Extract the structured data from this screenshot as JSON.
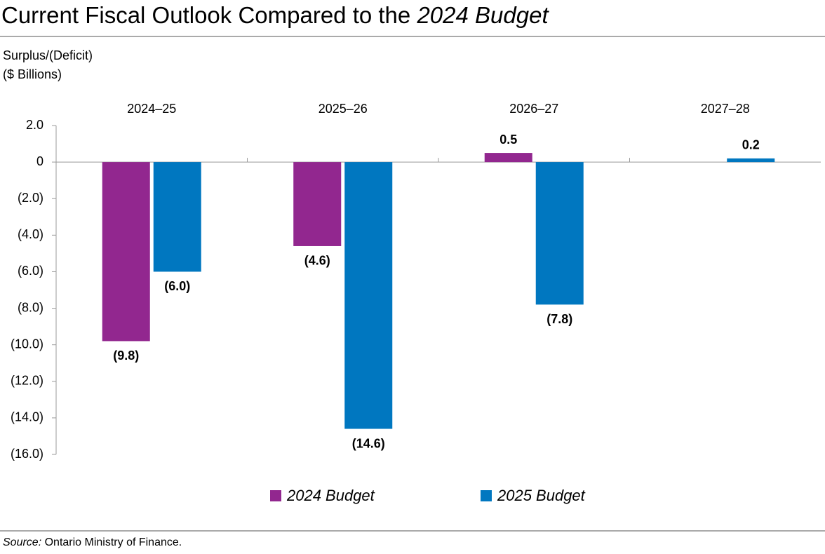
{
  "chart_data": {
    "type": "bar",
    "title": {
      "text": "Current Fiscal Outlook Compared to the",
      "emphasis": "2024 Budget"
    },
    "ylabel": [
      "Surplus/(Deficit)",
      "($ Billions)"
    ],
    "categories": [
      "2024–25",
      "2025–26",
      "2026–27",
      "2027–28"
    ],
    "series": [
      {
        "name": "2024 Budget",
        "color": "#92278f",
        "values": [
          -9.8,
          -4.6,
          0.5,
          null
        ],
        "value_labels": [
          "(9.8)",
          "(4.6)",
          "0.5",
          null
        ]
      },
      {
        "name": "2025 Budget",
        "color": "#0077c0",
        "values": [
          -6.0,
          -14.6,
          -7.8,
          0.2
        ],
        "value_labels": [
          "(6.0)",
          "(14.6)",
          "(7.8)",
          "0.2"
        ]
      }
    ],
    "ylim": [
      -16,
      2
    ],
    "yticks": [
      {
        "value": 2,
        "label": "2.0"
      },
      0,
      {
        "value": -2,
        "label": "(2.0)"
      },
      {
        "value": -4,
        "label": "(4.0)"
      },
      {
        "value": -6,
        "label": "(6.0)"
      },
      {
        "value": -8,
        "label": "(8.0)"
      },
      {
        "value": -10,
        "label": "(10.0)"
      },
      {
        "value": -12,
        "label": "(12.0)"
      },
      {
        "value": -14,
        "label": "(14.0)"
      },
      {
        "value": -16,
        "label": "(16.0)"
      }
    ],
    "grid": false,
    "legend": "bottom",
    "source": {
      "label": "Source:",
      "text": "Ontario Ministry of Finance."
    }
  }
}
